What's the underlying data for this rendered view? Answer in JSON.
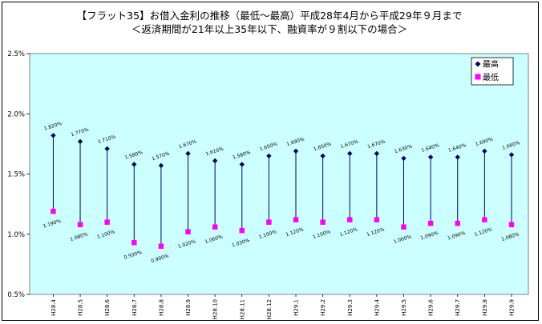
{
  "chart_data": {
    "type": "scatter",
    "title": "【フラット35】お借入金利の推移（最低～最高）平成28年4月から平成29年９月まで",
    "subtitle": "＜返済期間が21年以上35年以下、融資率が９割以下の場合＞",
    "xlabel": "",
    "ylabel": "",
    "ylim": [
      0.5,
      2.5
    ],
    "y_ticks": [
      "0.5%",
      "1.0%",
      "1.5%",
      "2.0%",
      "2.5%"
    ],
    "grid": false,
    "legend_position": "top-right",
    "categories": [
      "H28.4",
      "H28.5",
      "H28.6",
      "H28.7",
      "H28.8",
      "H28.9",
      "H28.10",
      "H28.11",
      "H28.12",
      "H29.1",
      "H29.2",
      "H29.3",
      "H29.4",
      "H29.5",
      "H29.6",
      "H29.7",
      "H29.8",
      "H29.9"
    ],
    "series": [
      {
        "name": "最高",
        "marker": "diamond",
        "color": "#000066",
        "values": [
          1.82,
          1.77,
          1.71,
          1.58,
          1.57,
          1.67,
          1.61,
          1.58,
          1.65,
          1.69,
          1.65,
          1.67,
          1.67,
          1.63,
          1.64,
          1.64,
          1.69,
          1.66
        ],
        "labels": [
          "1.820%",
          "1.770%",
          "1.710%",
          "1.580%",
          "1.570%",
          "1.670%",
          "1.610%",
          "1.580%",
          "1.650%",
          "1.690%",
          "1.650%",
          "1.670%",
          "1.670%",
          "1.630%",
          "1.640%",
          "1.640%",
          "1.690%",
          "1.660%"
        ]
      },
      {
        "name": "最低",
        "marker": "square",
        "color": "#ff00ff",
        "values": [
          1.19,
          1.08,
          1.1,
          0.93,
          0.9,
          1.02,
          1.06,
          1.03,
          1.1,
          1.12,
          1.1,
          1.12,
          1.12,
          1.06,
          1.09,
          1.09,
          1.12,
          1.08
        ],
        "labels": [
          "1.190%",
          "1.080%",
          "1.100%",
          "0.930%",
          "0.900%",
          "1.020%",
          "1.060%",
          "1.030%",
          "1.100%",
          "1.120%",
          "1.100%",
          "1.120%",
          "1.120%",
          "1.060%",
          "1.090%",
          "1.090%",
          "1.120%",
          "1.080%"
        ]
      }
    ],
    "colors": {
      "plot_background": "#ccffff",
      "range_line": "#000066"
    }
  }
}
